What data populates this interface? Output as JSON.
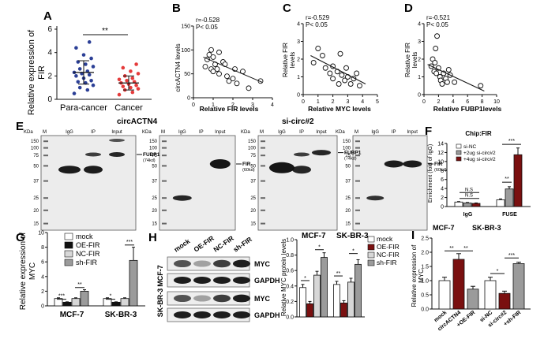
{
  "colors": {
    "blue": "#2b3f96",
    "red": "#e53b3b",
    "dark_red": "#7a1010",
    "gray": "#9b9b9b",
    "light_gray": "#d7d7d7",
    "black": "#111111",
    "white": "#ffffff"
  },
  "panels": {
    "A": {
      "label": "A",
      "sig": "**",
      "ylabel_l1": "Relative expression of",
      "ylabel_l2": "FIR",
      "yticks": [
        "0",
        "2",
        "4",
        "6"
      ],
      "xticks": [
        "Para-cancer",
        "Cancer"
      ]
    },
    "B": {
      "label": "B",
      "r": "r=-0.528",
      "p": "P< 0.05",
      "ylabel": "circACTN4 levels",
      "xlabel": "Relative FIR levels",
      "xticks": [
        "0",
        "1",
        "2",
        "3",
        "4"
      ],
      "yticks": [
        "0",
        "50",
        "100",
        "150"
      ]
    },
    "C": {
      "label": "C",
      "r": "r=-0.529",
      "p": "P< 0.05",
      "ylabel_l1": "Relative FIR",
      "ylabel_l2": "levels",
      "xlabel": "Relative MYC levels",
      "xticks": [
        "0",
        "1",
        "2",
        "3",
        "4",
        "5"
      ],
      "yticks": [
        "0",
        "1",
        "2",
        "3",
        "4"
      ]
    },
    "D": {
      "label": "D",
      "r": "r=-0.521",
      "p": "P< 0.05",
      "ylabel_l1": "Relative FIR",
      "ylabel_l2": "levels",
      "xlabel": "Relative FUBP1levels",
      "xticks": [
        "0",
        "2",
        "4",
        "6",
        "8",
        "10"
      ],
      "yticks": [
        "0",
        "1",
        "2",
        "3",
        "4"
      ]
    },
    "E": {
      "label": "E",
      "title1": "circACTN4",
      "title2": "si-circ#2",
      "kda": "KDa",
      "m": "M",
      "lanes": [
        "IgG",
        "IP",
        "Input"
      ],
      "mw": [
        "150",
        "100",
        "75",
        "50",
        "37",
        "25",
        "20",
        "15"
      ],
      "fubp1": "FUBP1",
      "fubp1_kd": "(74kd)",
      "fir": "FIR",
      "fir_kd": "(60kd)"
    },
    "F": {
      "label": "F",
      "title": "Chip:FIR",
      "ylabel": "Enrichment (fold of IgG)",
      "legend": [
        "si-NC",
        "+2ug si-circ#2",
        "+4ug si-circ#2"
      ],
      "ns1": "N.S",
      "ns2": "N.S",
      "s1": "**",
      "s2": "***",
      "xticks": [
        "IgG",
        "FUSE"
      ],
      "yticks": [
        "0",
        "2",
        "4",
        "6",
        "8",
        "10",
        "12",
        "14"
      ]
    },
    "G": {
      "label": "G",
      "ylabel_l1": "Relative expression of",
      "ylabel_l2": "MYC",
      "legend": [
        "mock",
        "OE-FIR",
        "NC-FIR",
        "sh-FIR"
      ],
      "sig": [
        "***",
        "**",
        "*",
        "***"
      ],
      "xticks": [
        "MCF-7",
        "SK-BR-3"
      ],
      "yticks": [
        "0",
        "2",
        "4",
        "6",
        "8",
        "10"
      ]
    },
    "H": {
      "label": "H",
      "cols": [
        "mock",
        "OE-FIR",
        "NC-FIR",
        "sh-FIR"
      ],
      "rows": [
        "MYC",
        "GAPDH",
        "MYC",
        "GAPDH"
      ],
      "cells": [
        "MCF-7",
        "SK-BR-3"
      ],
      "chart_title1": "MCF-7",
      "chart_title2": "SK-BR-3",
      "ylabel": "Relative MYC protein levels",
      "legend": [
        "mock",
        "OE-FIR",
        "NC-FIR",
        "sh-FIR"
      ],
      "yticks": [
        "0.0",
        "0.2",
        "0.4",
        "0.6",
        "0.8",
        "1.0"
      ],
      "sig": [
        "*",
        "*",
        "**",
        "*"
      ]
    },
    "I": {
      "label": "I",
      "t1": "MCF-7",
      "t2": "SK-BR-3",
      "ylabel_l1": "Relative expression of",
      "ylabel_l2": "MYC",
      "yticks": [
        "0.0",
        "0.5",
        "1.0",
        "1.5",
        "2.0",
        "2.5"
      ],
      "xcats": [
        "mock",
        "circACTN4",
        "+OE-FIR",
        "si-NC",
        "si-circ#2",
        "+sh-FIR"
      ],
      "sig": [
        "**",
        "**",
        "*",
        "***"
      ]
    }
  },
  "chart_data": [
    {
      "panel": "A",
      "type": "scatter",
      "categories": [
        "Para-cancer",
        "Cancer"
      ],
      "ylim": [
        0,
        6
      ],
      "series": [
        {
          "values": [
            0.5,
            0.8,
            1.0,
            1.2,
            1.4,
            1.5,
            1.6,
            1.8,
            2.0,
            2.1,
            2.2,
            2.3,
            2.4,
            2.6,
            2.8,
            3.0,
            3.2,
            3.5,
            3.8,
            4.4,
            4.9
          ],
          "mean": 2.3,
          "sd": 1.0
        },
        {
          "values": [
            0.4,
            0.6,
            0.8,
            0.9,
            1.0,
            1.1,
            1.2,
            1.3,
            1.4,
            1.5,
            1.6,
            1.7,
            1.8,
            2.0,
            2.2,
            2.4,
            2.7,
            3.0
          ],
          "mean": 1.4,
          "sd": 0.6
        }
      ]
    },
    {
      "panel": "B",
      "type": "scatter",
      "xlim": [
        0,
        4
      ],
      "ylim": [
        0,
        150
      ],
      "points": [
        [
          0.6,
          65
        ],
        [
          0.7,
          80
        ],
        [
          0.8,
          90
        ],
        [
          0.9,
          100
        ],
        [
          1.0,
          85
        ],
        [
          1.1,
          70
        ],
        [
          1.2,
          60
        ],
        [
          1.3,
          50
        ],
        [
          1.3,
          95
        ],
        [
          1.5,
          75
        ],
        [
          1.6,
          70
        ],
        [
          1.7,
          45
        ],
        [
          1.8,
          35
        ],
        [
          2.0,
          40
        ],
        [
          2.1,
          60
        ],
        [
          2.2,
          30
        ],
        [
          2.5,
          55
        ],
        [
          2.8,
          20
        ],
        [
          3.4,
          35
        ],
        [
          0.9,
          60
        ],
        [
          1.0,
          55
        ]
      ],
      "fit": [
        [
          0.5,
          85
        ],
        [
          3.5,
          32
        ]
      ]
    },
    {
      "panel": "C",
      "type": "scatter",
      "xlim": [
        0,
        5
      ],
      "ylim": [
        0,
        4
      ],
      "points": [
        [
          0.7,
          1.8
        ],
        [
          1.0,
          2.6
        ],
        [
          1.3,
          2.2
        ],
        [
          1.5,
          1.5
        ],
        [
          1.8,
          1.2
        ],
        [
          2.0,
          1.6
        ],
        [
          2.0,
          0.9
        ],
        [
          2.3,
          1.3
        ],
        [
          2.4,
          0.6
        ],
        [
          2.6,
          1.1
        ],
        [
          2.8,
          0.8
        ],
        [
          2.9,
          1.5
        ],
        [
          3.0,
          1.0
        ],
        [
          3.2,
          0.6
        ],
        [
          3.4,
          0.9
        ],
        [
          3.6,
          1.2
        ],
        [
          3.8,
          0.5
        ],
        [
          2.5,
          2.3
        ]
      ],
      "fit": [
        [
          0.5,
          2.2
        ],
        [
          4.2,
          0.6
        ]
      ]
    },
    {
      "panel": "D",
      "type": "scatter",
      "xlim": [
        0,
        10
      ],
      "ylim": [
        0,
        4
      ],
      "points": [
        [
          1.0,
          1.6
        ],
        [
          1.2,
          2.0
        ],
        [
          1.4,
          1.3
        ],
        [
          1.5,
          1.8
        ],
        [
          1.6,
          2.6
        ],
        [
          1.7,
          1.2
        ],
        [
          1.8,
          3.3
        ],
        [
          2.0,
          1.5
        ],
        [
          2.2,
          1.0
        ],
        [
          2.3,
          0.8
        ],
        [
          2.5,
          0.6
        ],
        [
          2.7,
          1.2
        ],
        [
          3.0,
          0.9
        ],
        [
          3.2,
          0.7
        ],
        [
          3.4,
          1.4
        ],
        [
          3.6,
          1.1
        ],
        [
          4.2,
          0.7
        ],
        [
          7.8,
          0.5
        ]
      ],
      "fit": [
        [
          0.5,
          1.7
        ],
        [
          8.3,
          0.2
        ]
      ]
    },
    {
      "panel": "F",
      "type": "bar",
      "categories": [
        "IgG",
        "FUSE"
      ],
      "ylim": [
        0,
        14
      ],
      "series": [
        {
          "name": "si-NC",
          "values": [
            1.0,
            1.5
          ],
          "err": [
            0.1,
            0.2
          ]
        },
        {
          "name": "+2ug si-circ#2",
          "values": [
            0.8,
            3.9
          ],
          "err": [
            0.1,
            0.5
          ]
        },
        {
          "name": "+4ug si-circ#2",
          "values": [
            0.7,
            11.5
          ],
          "err": [
            0.1,
            1.5
          ]
        }
      ]
    },
    {
      "panel": "G",
      "type": "bar",
      "categories": [
        "MCF-7",
        "SK-BR-3"
      ],
      "ylim": [
        0,
        10
      ],
      "series": [
        {
          "name": "mock",
          "values": [
            1.0,
            1.0
          ],
          "err": [
            0.1,
            0.1
          ]
        },
        {
          "name": "OE-FIR",
          "values": [
            0.5,
            0.5
          ],
          "err": [
            0.05,
            0.05
          ]
        },
        {
          "name": "NC-FIR",
          "values": [
            1.0,
            1.0
          ],
          "err": [
            0.1,
            0.1
          ]
        },
        {
          "name": "sh-FIR",
          "values": [
            2.0,
            6.2
          ],
          "err": [
            0.2,
            1.8
          ]
        }
      ]
    },
    {
      "panel": "H",
      "type": "bar",
      "categories": [
        "MCF-7",
        "SK-BR-3"
      ],
      "ylim": [
        0,
        1.0
      ],
      "series": [
        {
          "name": "mock",
          "values": [
            0.38,
            0.42
          ],
          "err": [
            0.04,
            0.04
          ]
        },
        {
          "name": "OE-FIR",
          "values": [
            0.17,
            0.18
          ],
          "err": [
            0.03,
            0.03
          ]
        },
        {
          "name": "NC-FIR",
          "values": [
            0.54,
            0.45
          ],
          "err": [
            0.05,
            0.05
          ]
        },
        {
          "name": "sh-FIR",
          "values": [
            0.77,
            0.68
          ],
          "err": [
            0.06,
            0.06
          ]
        }
      ]
    },
    {
      "panel": "I",
      "type": "bar",
      "categories": [
        "mock",
        "circACTN4",
        "+OE-FIR",
        "si-NC",
        "si-circ#2",
        "+sh-FIR"
      ],
      "ylim": [
        0,
        2.5
      ],
      "values": [
        1.0,
        1.75,
        0.7,
        1.0,
        0.55,
        1.6
      ],
      "err": [
        0.12,
        0.2,
        0.1,
        0.12,
        0.08,
        0.05
      ]
    }
  ]
}
